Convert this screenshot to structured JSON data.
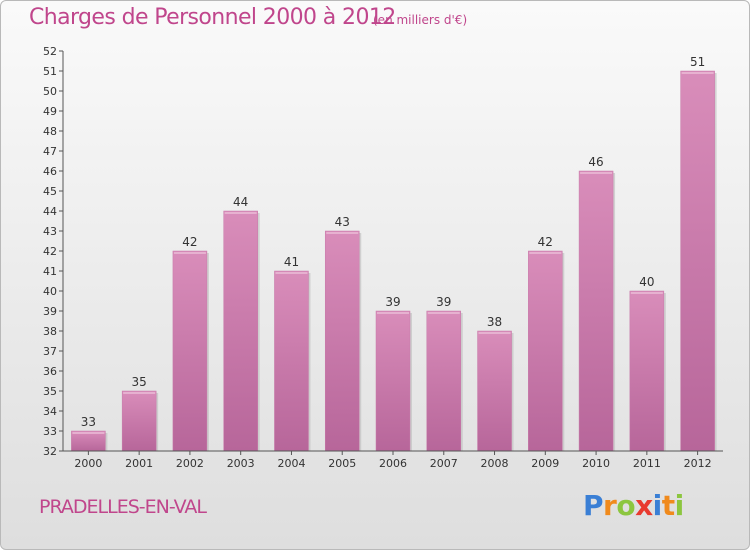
{
  "chart_data": {
    "type": "bar",
    "title": "Charges de Personnel 2000 à 2012",
    "subtitle": "(en milliers d'€)",
    "categories": [
      "2000",
      "2001",
      "2002",
      "2003",
      "2004",
      "2005",
      "2006",
      "2007",
      "2008",
      "2009",
      "2010",
      "2011",
      "2012"
    ],
    "values": [
      33,
      35,
      42,
      44,
      41,
      43,
      39,
      39,
      38,
      42,
      46,
      40,
      51
    ],
    "ylim": [
      32,
      52
    ],
    "yticks": [
      32,
      33,
      34,
      35,
      36,
      37,
      38,
      39,
      40,
      41,
      42,
      43,
      44,
      45,
      46,
      47,
      48,
      49,
      50,
      51,
      52
    ],
    "grid": false,
    "bar_color": "#d98dba",
    "bar_color_dark": "#b7669a",
    "axis_color": "#555555"
  },
  "footer": {
    "commune": "PRADELLES-EN-VAL"
  },
  "logo": {
    "text": "Proxiti",
    "letters": [
      {
        "ch": "P",
        "color": "#3a7fd5"
      },
      {
        "ch": "r",
        "color": "#f08a1c"
      },
      {
        "ch": "o",
        "color": "#8cc63f"
      },
      {
        "ch": "x",
        "color": "#e83a2f"
      },
      {
        "ch": "i",
        "color": "#3a7fd5"
      },
      {
        "ch": "t",
        "color": "#f08a1c"
      },
      {
        "ch": "i",
        "color": "#8cc63f"
      }
    ]
  }
}
